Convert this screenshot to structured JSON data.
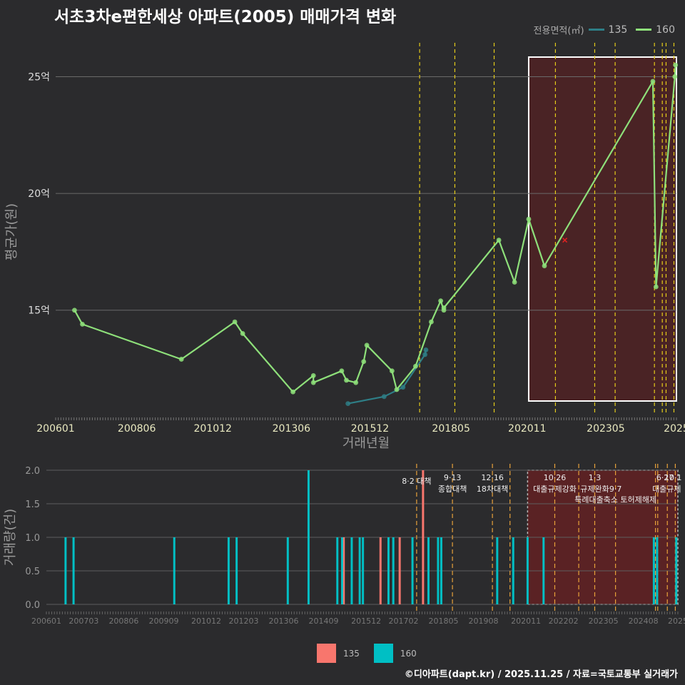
{
  "title": "서초3차e편한세상 아파트(2005) 매매가격 변화",
  "legend_title": "전용면적(㎡)",
  "footer": "©디아파트(dapt.kr) / 2025.11.25 / 자료=국토교통부 실거래가",
  "colors": {
    "s135_price": "#2e7e86",
    "s160_price": "#8ee07a",
    "s135_vol": "#f8766d",
    "s160_vol": "#00bfc4",
    "policy": "#e5cc1a",
    "policy_vol": "#e8a23a",
    "highlight_fill": "#4a2325",
    "vol_highlight_fill": "#5a2224",
    "marker": "#dd2222"
  },
  "chart_data": [
    {
      "type": "line",
      "name": "price",
      "xlabel": "거래년월",
      "ylabel": "평균가(원)",
      "x_range": [
        2006.0,
        2025.75
      ],
      "ylim": [
        10.5,
        27.0
      ],
      "yticks": [
        15,
        20,
        25
      ],
      "ytick_labels": [
        "15억",
        "20억",
        "25억"
      ],
      "xticks": [
        {
          "t": 2006.0,
          "label": "200601"
        },
        {
          "t": 2008.58,
          "label": "200806"
        },
        {
          "t": 2011.0,
          "label": "201012"
        },
        {
          "t": 2013.5,
          "label": "201306"
        },
        {
          "t": 2016.0,
          "label": "201512"
        },
        {
          "t": 2018.58,
          "label": "201805"
        },
        {
          "t": 2021.0,
          "label": "202011"
        },
        {
          "t": 2023.5,
          "label": "202305"
        },
        {
          "t": 2025.75,
          "label": "2025"
        }
      ],
      "series": [
        {
          "name": "135",
          "points": [
            [
              2015.3,
              11.0
            ],
            [
              2016.45,
              11.3
            ],
            [
              2017.05,
              11.7
            ],
            [
              2017.75,
              13.1
            ],
            [
              2017.78,
              13.3
            ]
          ]
        },
        {
          "name": "160",
          "points": [
            [
              2006.6,
              15.0
            ],
            [
              2006.85,
              14.4
            ],
            [
              2010.0,
              12.9
            ],
            [
              2011.7,
              14.5
            ],
            [
              2011.95,
              14.0
            ],
            [
              2013.55,
              11.5
            ],
            [
              2014.2,
              12.2
            ],
            [
              2014.2,
              11.9
            ],
            [
              2015.1,
              12.4
            ],
            [
              2015.25,
              12.0
            ],
            [
              2015.55,
              11.9
            ],
            [
              2015.8,
              12.8
            ],
            [
              2015.9,
              13.5
            ],
            [
              2016.7,
              12.4
            ],
            [
              2016.85,
              11.6
            ],
            [
              2017.45,
              12.6
            ],
            [
              2017.95,
              14.5
            ],
            [
              2018.25,
              15.4
            ],
            [
              2018.35,
              15.0
            ],
            [
              2018.35,
              15.1
            ],
            [
              2020.1,
              18.0
            ],
            [
              2020.6,
              16.2
            ],
            [
              2021.05,
              18.9
            ],
            [
              2021.55,
              16.9
            ],
            [
              2025.0,
              24.8
            ],
            [
              2025.1,
              16.0
            ],
            [
              2025.7,
              25.0
            ],
            [
              2025.72,
              25.5
            ]
          ]
        }
      ],
      "marker_point": [
        2022.2,
        18.0
      ],
      "policy_lines": [
        2017.58,
        2018.7,
        2019.95,
        2021.9,
        2023.15,
        2023.8,
        2025.05,
        2025.3,
        2025.42,
        2025.67
      ],
      "highlight": [
        2021.05,
        2025.75
      ]
    },
    {
      "type": "bar",
      "name": "volume",
      "ylabel": "거래량(건)",
      "ylim": [
        0,
        2.0
      ],
      "yticks": [
        0,
        0.5,
        1,
        1.5,
        2
      ],
      "ytick_labels": [
        "0.0",
        "0.5",
        "1.0",
        "1.5",
        "2.0"
      ],
      "x_range": [
        2006.0,
        2025.75
      ],
      "xticks": [
        {
          "t": 2006.0,
          "label": "200601"
        },
        {
          "t": 2007.17,
          "label": "200703"
        },
        {
          "t": 2008.42,
          "label": "200806"
        },
        {
          "t": 2009.67,
          "label": "200909"
        },
        {
          "t": 2011.0,
          "label": "201012"
        },
        {
          "t": 2012.17,
          "label": "201203"
        },
        {
          "t": 2013.42,
          "label": "201306"
        },
        {
          "t": 2014.67,
          "label": "201409"
        },
        {
          "t": 2016.0,
          "label": "201512"
        },
        {
          "t": 2017.17,
          "label": "201702"
        },
        {
          "t": 2018.42,
          "label": "201805"
        },
        {
          "t": 2019.67,
          "label": "201908"
        },
        {
          "t": 2021.0,
          "label": "202011"
        },
        {
          "t": 2022.17,
          "label": "202202"
        },
        {
          "t": 2023.42,
          "label": "202305"
        },
        {
          "t": 2024.67,
          "label": "202408"
        },
        {
          "t": 2025.75,
          "label": "2025"
        }
      ],
      "series": [
        {
          "name": "135",
          "bars": [
            [
              2015.3,
              1
            ],
            [
              2016.45,
              1
            ],
            [
              2017.05,
              1
            ],
            [
              2017.78,
              2
            ]
          ]
        },
        {
          "name": "160",
          "bars": [
            [
              2006.6,
              1
            ],
            [
              2006.85,
              1
            ],
            [
              2010.0,
              1
            ],
            [
              2011.7,
              1
            ],
            [
              2011.95,
              1
            ],
            [
              2013.55,
              1
            ],
            [
              2014.2,
              2
            ],
            [
              2015.1,
              1
            ],
            [
              2015.25,
              1
            ],
            [
              2015.55,
              1
            ],
            [
              2015.8,
              1
            ],
            [
              2015.9,
              1
            ],
            [
              2016.7,
              1
            ],
            [
              2016.85,
              1
            ],
            [
              2017.45,
              1
            ],
            [
              2017.95,
              1
            ],
            [
              2018.25,
              1
            ],
            [
              2018.35,
              1
            ],
            [
              2020.1,
              1
            ],
            [
              2020.6,
              1
            ],
            [
              2021.05,
              1
            ],
            [
              2021.55,
              1
            ],
            [
              2025.0,
              1
            ],
            [
              2025.1,
              1
            ],
            [
              2025.7,
              1
            ]
          ]
        }
      ],
      "policy_lines": [
        2017.58,
        2018.7,
        2019.95,
        2020.5,
        2021.9,
        2022.65,
        2023.15,
        2023.8,
        2025.05,
        2025.12,
        2025.42,
        2025.67
      ],
      "highlight": [
        2021.05,
        2025.75
      ],
      "annotations": [
        {
          "t": 2017.58,
          "y": 1.8,
          "text": "8·2 대책"
        },
        {
          "t": 2018.7,
          "y": 1.85,
          "text": "9·13"
        },
        {
          "t": 2018.7,
          "y": 1.68,
          "text": "종합대책"
        },
        {
          "t": 2019.95,
          "y": 1.85,
          "text": "12·16"
        },
        {
          "t": 2019.95,
          "y": 1.68,
          "text": "18차대책"
        },
        {
          "t": 2021.9,
          "y": 1.85,
          "text": "10·26"
        },
        {
          "t": 2021.9,
          "y": 1.68,
          "text": "대출규제강화"
        },
        {
          "t": 2023.15,
          "y": 1.85,
          "text": "1·3"
        },
        {
          "t": 2023.15,
          "y": 1.68,
          "text": "규제완화"
        },
        {
          "t": 2023.8,
          "y": 1.68,
          "text": "9·7"
        },
        {
          "t": 2023.8,
          "y": 1.52,
          "text": "특례대출축소 토허제해제"
        },
        {
          "t": 2025.35,
          "y": 1.85,
          "text": "6·27"
        },
        {
          "t": 2025.6,
          "y": 1.85,
          "text": "10·1"
        },
        {
          "t": 2025.4,
          "y": 1.68,
          "text": "대출규제"
        }
      ]
    }
  ]
}
